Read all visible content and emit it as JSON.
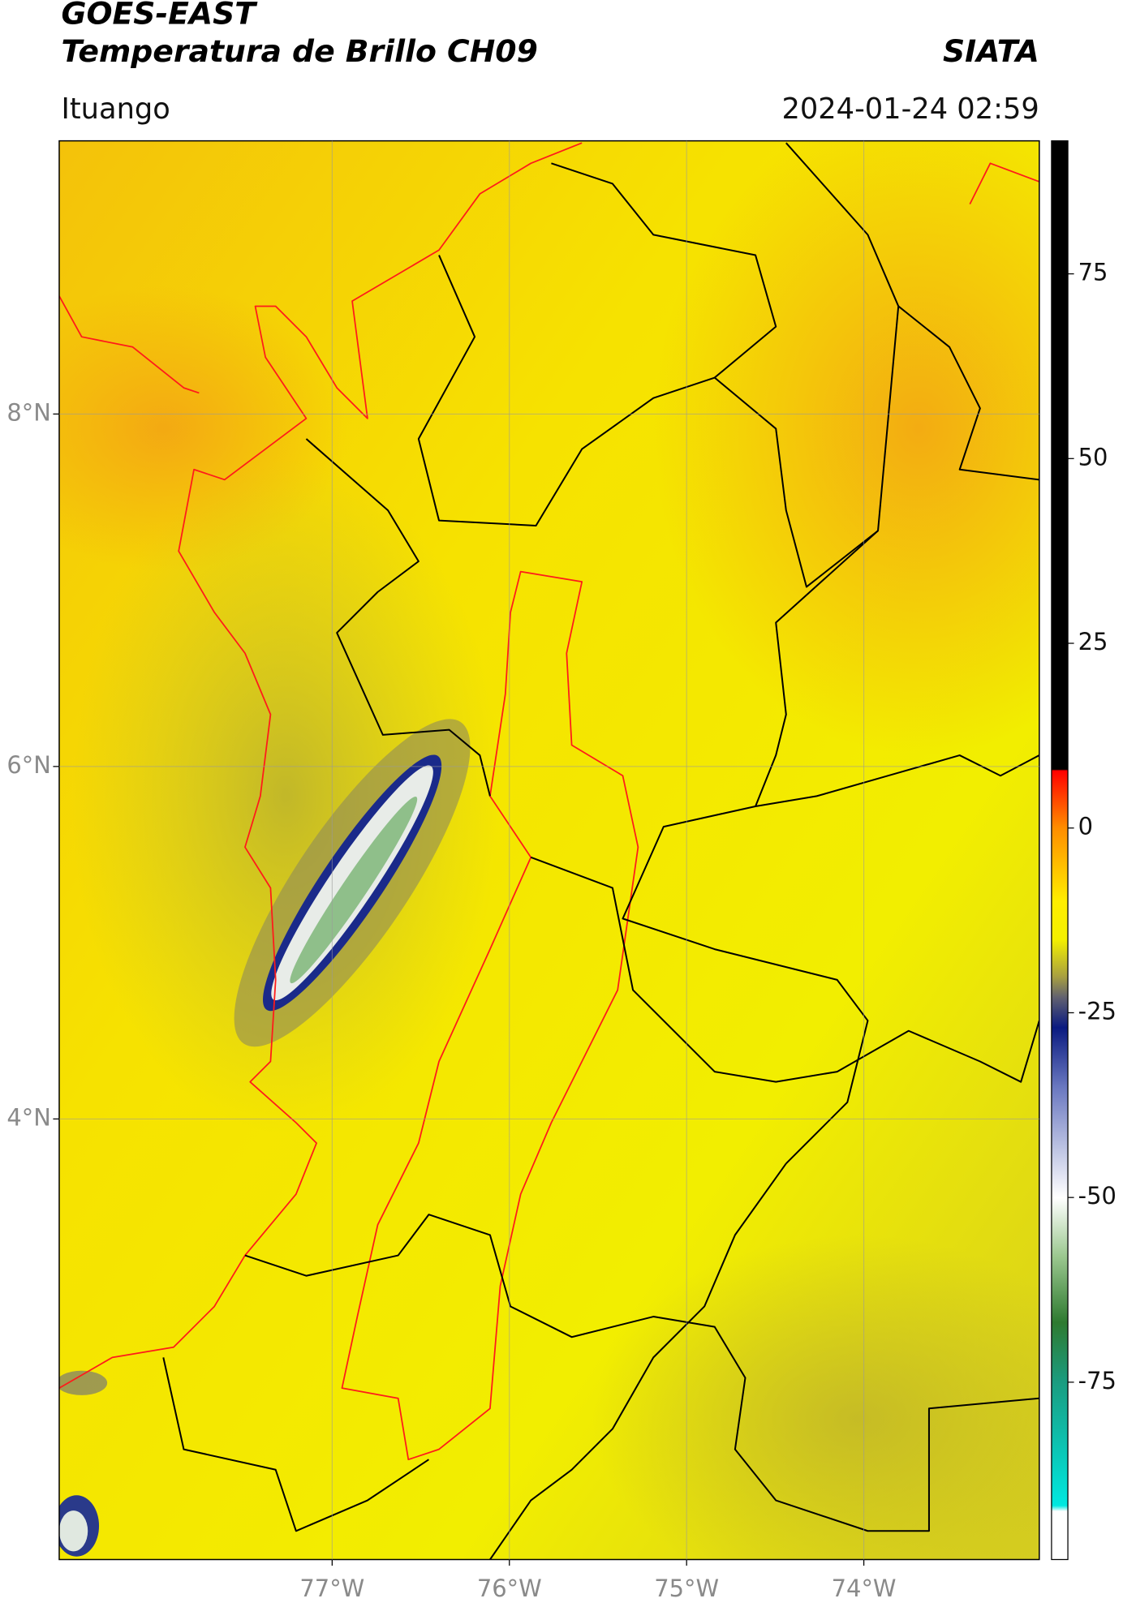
{
  "chart_data": {
    "type": "map",
    "title": "GOES-EAST",
    "subtitle": "Temperatura de Brillo CH09",
    "source": "SIATA",
    "region": "Ituango",
    "timestamp": "2024-01-24 02:59",
    "xlim": [
      -78.54,
      -73.01
    ],
    "ylim": [
      1.5,
      9.55
    ],
    "xticks": [
      {
        "value": -77,
        "label": "77°W"
      },
      {
        "value": -76,
        "label": "76°W"
      },
      {
        "value": -75,
        "label": "75°W"
      },
      {
        "value": -74,
        "label": "74°W"
      }
    ],
    "yticks": [
      {
        "value": 8,
        "label": "8°N"
      },
      {
        "value": 6,
        "label": "6°N"
      },
      {
        "value": 4,
        "label": "4°N"
      }
    ],
    "grid": true,
    "colorbar": {
      "clim": [
        -99,
        93
      ],
      "ticks": [
        75,
        50,
        25,
        0,
        -25,
        -50,
        -75
      ]
    }
  }
}
